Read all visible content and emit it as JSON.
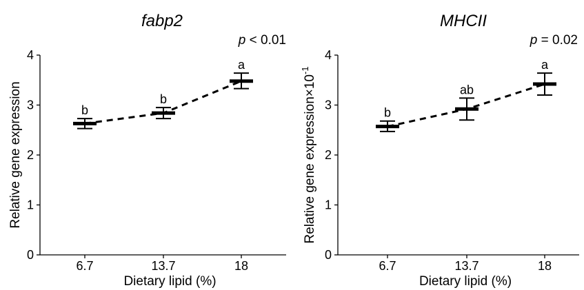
{
  "chart_data": [
    {
      "type": "line",
      "title": "fabp2",
      "p_prefix": "p",
      "p_rest": " < 0.01",
      "xlabel": "Dietary lipid (%)",
      "ylabel": "Relative gene expression",
      "ylabel_suffix": "",
      "ylim": [
        0,
        4
      ],
      "yticks": [
        "0",
        "1",
        "2",
        "3",
        "4"
      ],
      "categories": [
        "6.7",
        "13.7",
        "18"
      ],
      "values": [
        2.63,
        2.84,
        3.48
      ],
      "err_low": [
        2.53,
        2.73,
        3.33
      ],
      "err_high": [
        2.73,
        2.95,
        3.64
      ],
      "letters": [
        "b",
        "b",
        "a"
      ]
    },
    {
      "type": "line",
      "title": "MHCII",
      "p_prefix": "p",
      "p_rest": " = 0.02",
      "xlabel": "Dietary lipid (%)",
      "ylabel": "Relative gene expression×10",
      "ylabel_suffix": "-1",
      "ylim": [
        0,
        4
      ],
      "yticks": [
        "0",
        "1",
        "2",
        "3",
        "4"
      ],
      "categories": [
        "6.7",
        "13.7",
        "18"
      ],
      "values": [
        2.57,
        2.92,
        3.42
      ],
      "err_low": [
        2.47,
        2.7,
        3.2
      ],
      "err_high": [
        2.68,
        3.14,
        3.64
      ],
      "letters": [
        "b",
        "ab",
        "a"
      ]
    }
  ]
}
